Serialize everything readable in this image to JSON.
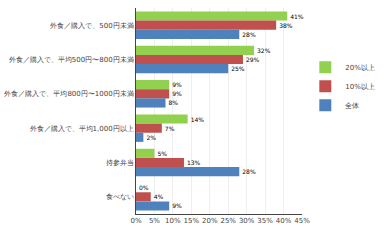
{
  "chart_data": {
    "type": "bar",
    "orientation": "horizontal",
    "categories": [
      "外食／購入で、500円未満",
      "外食／購入で、平均500円〜800円未満",
      "外食／購入で、平均800円〜1000円未満",
      "外食／購入で、平均1,000円以上",
      "持参弁当",
      "食べない"
    ],
    "series": [
      {
        "name": "20%以上",
        "color": "#92d050",
        "values": [
          41,
          32,
          9,
          14,
          5,
          0
        ],
        "value_labels": [
          "41%",
          "32%",
          "9%",
          "14%",
          "5%",
          "0%"
        ]
      },
      {
        "name": "10%以上",
        "color": "#c0504d",
        "values": [
          38,
          29,
          9,
          7,
          13,
          4
        ],
        "value_labels": [
          "38%",
          "29%",
          "9%",
          "7%",
          "13%",
          "4%"
        ]
      },
      {
        "name": "全体",
        "color": "#4f81bd",
        "values": [
          28,
          25,
          8,
          2,
          28,
          9
        ],
        "value_labels": [
          "28%",
          "25%",
          "8%",
          "2%",
          "28%",
          "9%"
        ]
      }
    ],
    "xlim": [
      0,
      45
    ],
    "xticks": [
      {
        "value": 0,
        "label": "0%"
      },
      {
        "value": 5,
        "label": "5%"
      },
      {
        "value": 10,
        "label": "10%"
      },
      {
        "value": 15,
        "label": "15%"
      },
      {
        "value": 20,
        "label": "20%"
      },
      {
        "value": 25,
        "label": "25%"
      },
      {
        "value": 30,
        "label": "30%"
      },
      {
        "value": 35,
        "label": "35%"
      },
      {
        "value": 40,
        "label": "40%"
      },
      {
        "value": 45,
        "label": "45%"
      }
    ],
    "grid": true,
    "legend": "right",
    "data_labels": true
  }
}
